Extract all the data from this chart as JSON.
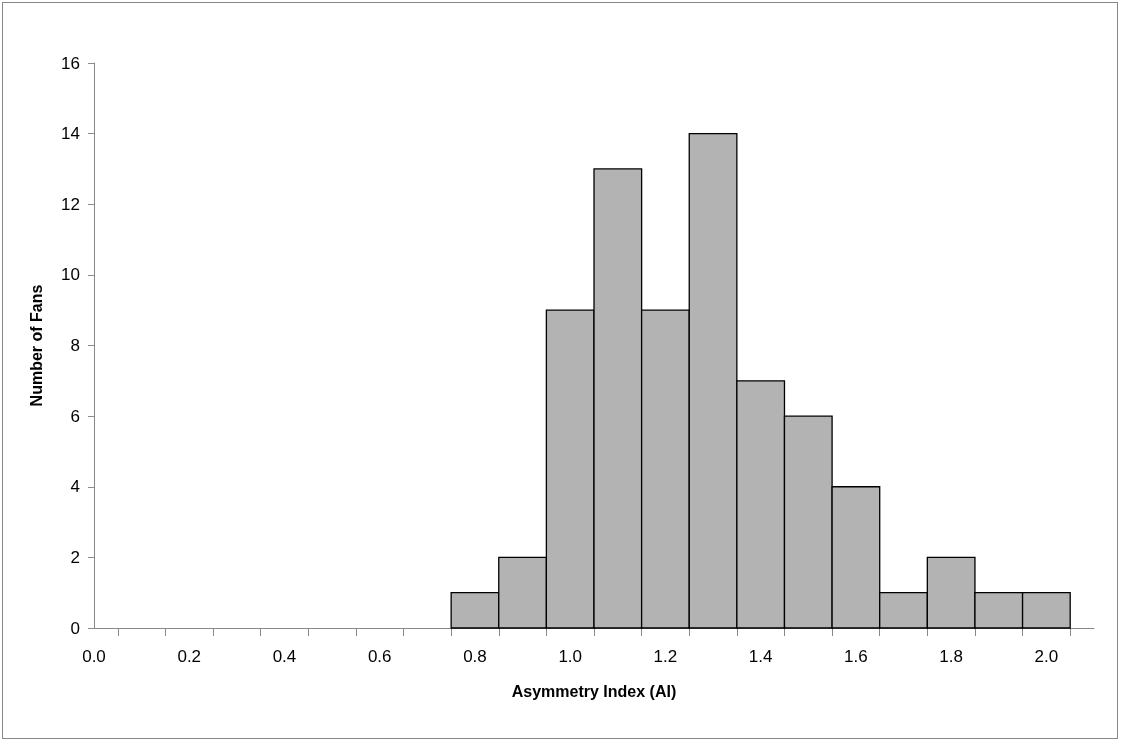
{
  "chart_data": {
    "type": "histogram",
    "xlabel": "Asymmetry Index (AI)",
    "ylabel": "Number of Fans",
    "bins": [
      0.75,
      0.85,
      0.95,
      1.05,
      1.15,
      1.25,
      1.35,
      1.45,
      1.55,
      1.65,
      1.75,
      1.85,
      1.95,
      2.05
    ],
    "values": [
      1,
      2,
      9,
      13,
      9,
      14,
      7,
      6,
      4,
      1,
      2,
      1,
      1
    ],
    "color": "#b3b3b3",
    "xlim": [
      0,
      2.1
    ],
    "xticks": [
      {
        "value": 0,
        "label": "0.0"
      },
      {
        "value": 0.2,
        "label": "0.2"
      },
      {
        "value": 0.4,
        "label": "0.4"
      },
      {
        "value": 0.6,
        "label": "0.6"
      },
      {
        "value": 0.8,
        "label": "0.8"
      },
      {
        "value": 1,
        "label": "1.0"
      },
      {
        "value": 1.2,
        "label": "1.2"
      },
      {
        "value": 1.4,
        "label": "1.4"
      },
      {
        "value": 1.6,
        "label": "1.6"
      },
      {
        "value": 1.8,
        "label": "1.8"
      },
      {
        "value": 2,
        "label": "2.0"
      },
      {
        "value": 0.05,
        "label": null
      },
      {
        "value": 0.15,
        "label": null
      },
      {
        "value": 0.25,
        "label": null
      },
      {
        "value": 0.35,
        "label": null
      },
      {
        "value": 0.45,
        "label": null
      },
      {
        "value": 0.55,
        "label": null
      },
      {
        "value": 0.65,
        "label": null
      },
      {
        "value": 0.75,
        "label": null
      },
      {
        "value": 0.85,
        "label": null
      },
      {
        "value": 0.95,
        "label": null
      },
      {
        "value": 1.05,
        "label": null
      },
      {
        "value": 1.15,
        "label": null
      },
      {
        "value": 1.25,
        "label": null
      },
      {
        "value": 1.35,
        "label": null
      },
      {
        "value": 1.45,
        "label": null
      },
      {
        "value": 1.55,
        "label": null
      },
      {
        "value": 1.65,
        "label": null
      },
      {
        "value": 1.75,
        "label": null
      },
      {
        "value": 1.85,
        "label": null
      },
      {
        "value": 1.95,
        "label": null
      },
      {
        "value": 2.05,
        "label": null
      }
    ],
    "ylim": [
      0,
      16
    ],
    "yticks": [
      0,
      2,
      4,
      6,
      8,
      10,
      12,
      14,
      16
    ],
    "grid": false
  }
}
